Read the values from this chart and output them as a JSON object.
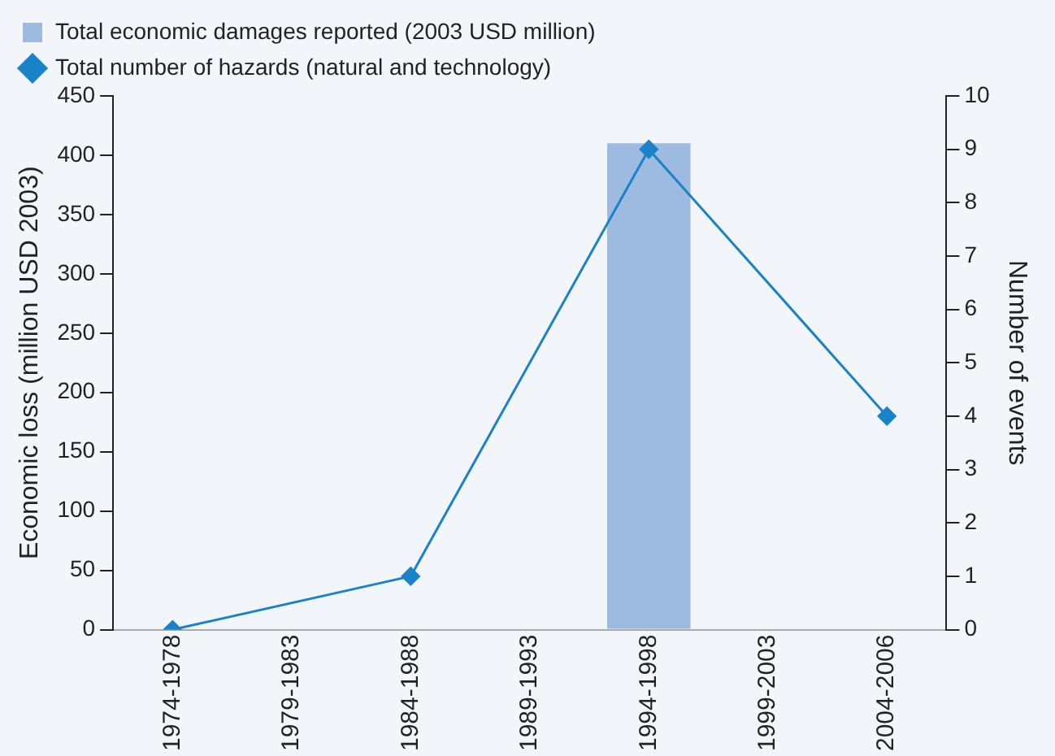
{
  "chart_data": {
    "type": "bar",
    "categories": [
      "1974-1978",
      "1979-1983",
      "1984-1988",
      "1989-1993",
      "1994-1998",
      "1999-2003",
      "2004-2006"
    ],
    "ylabel": "Economic loss (million USD 2003)",
    "y2label": "Number of events",
    "series": [
      {
        "name": "Total economic damages reported (2003 USD million)",
        "color": "#9dbbe1",
        "values": [
          null,
          null,
          null,
          null,
          410,
          null,
          null
        ]
      },
      {
        "name": "Total number of hazards (natural and technology)",
        "type": "line",
        "axis": "y2",
        "color": "#1a82c8",
        "marker": "diamond",
        "values": [
          0,
          null,
          1,
          null,
          9,
          null,
          4
        ]
      }
    ],
    "ylim": [
      0,
      450
    ],
    "yticks": [
      0,
      50,
      100,
      150,
      200,
      250,
      300,
      350,
      400,
      450
    ],
    "y2lim": [
      0,
      10
    ],
    "y2ticks": [
      0,
      1,
      2,
      3,
      4,
      5,
      6,
      7,
      8,
      9,
      10
    ],
    "legend": "top left",
    "grid": false
  }
}
